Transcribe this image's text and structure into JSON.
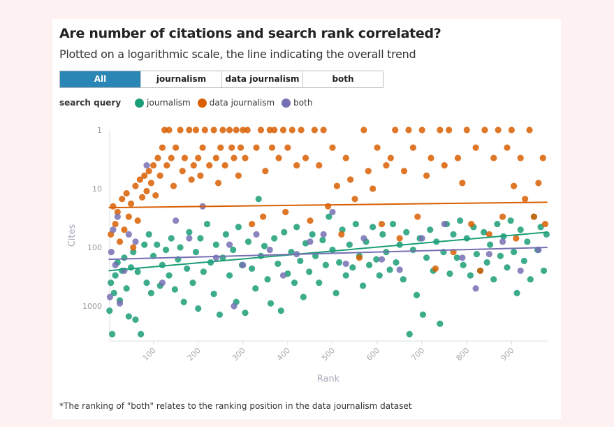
{
  "title": "Are number of citations and search rank correlated?",
  "subtitle": "Plotted on a logarithmic scale, the line indicating the overall trend",
  "filters": [
    {
      "label": "All",
      "active": true
    },
    {
      "label": "journalism",
      "active": false
    },
    {
      "label": "data journalism",
      "active": false
    },
    {
      "label": "both",
      "active": false
    }
  ],
  "legend_title": "search query",
  "footnote": "*The ranking of \"both\" relates to the ranking position in the data journalism dataset",
  "chart_data": {
    "type": "scatter",
    "xlabel": "Rank",
    "ylabel": "Cites",
    "xlim": [
      0,
      980
    ],
    "ylim": [
      1,
      4000
    ],
    "yscale": "log",
    "yreversed": true,
    "xticks": [
      100,
      200,
      300,
      400,
      500,
      600,
      700,
      800,
      900
    ],
    "yticks": [
      1,
      10,
      100,
      1000
    ],
    "series": [
      {
        "name": "journalism",
        "color": "#1b9e77",
        "trend": [
          [
            0,
            250
          ],
          [
            980,
            55
          ]
        ],
        "points": [
          [
            2,
            1200
          ],
          [
            5,
            400
          ],
          [
            8,
            3000
          ],
          [
            12,
            600
          ],
          [
            15,
            300
          ],
          [
            20,
            180
          ],
          [
            25,
            800
          ],
          [
            30,
            250
          ],
          [
            35,
            150
          ],
          [
            40,
            500
          ],
          [
            45,
            1500
          ],
          [
            50,
            220
          ],
          [
            55,
            120
          ],
          [
            60,
            1700
          ],
          [
            65,
            260
          ],
          [
            72,
            3000
          ],
          [
            80,
            90
          ],
          [
            85,
            400
          ],
          [
            90,
            60
          ],
          [
            95,
            600
          ],
          [
            100,
            140
          ],
          [
            108,
            90
          ],
          [
            115,
            450
          ],
          [
            120,
            200
          ],
          [
            128,
            110
          ],
          [
            135,
            300
          ],
          [
            140,
            70
          ],
          [
            148,
            520
          ],
          [
            155,
            160
          ],
          [
            160,
            100
          ],
          [
            168,
            850
          ],
          [
            175,
            230
          ],
          [
            180,
            55
          ],
          [
            188,
            400
          ],
          [
            195,
            120
          ],
          [
            200,
            1100
          ],
          [
            205,
            70
          ],
          [
            212,
            260
          ],
          [
            220,
            40
          ],
          [
            228,
            180
          ],
          [
            235,
            620
          ],
          [
            240,
            90
          ],
          [
            248,
            1400
          ],
          [
            255,
            150
          ],
          [
            262,
            60
          ],
          [
            270,
            300
          ],
          [
            278,
            110
          ],
          [
            285,
            850
          ],
          [
            290,
            45
          ],
          [
            298,
            200
          ],
          [
            305,
            1300
          ],
          [
            312,
            80
          ],
          [
            320,
            230
          ],
          [
            328,
            500
          ],
          [
            335,
            15
          ],
          [
            340,
            140
          ],
          [
            348,
            95
          ],
          [
            355,
            350
          ],
          [
            362,
            900
          ],
          [
            370,
            70
          ],
          [
            378,
            190
          ],
          [
            385,
            1200
          ],
          [
            392,
            55
          ],
          [
            400,
            280
          ],
          [
            408,
            120
          ],
          [
            415,
            400
          ],
          [
            420,
            45
          ],
          [
            428,
            170
          ],
          [
            435,
            700
          ],
          [
            440,
            85
          ],
          [
            448,
            260
          ],
          [
            455,
            60
          ],
          [
            462,
            140
          ],
          [
            470,
            400
          ],
          [
            478,
            75
          ],
          [
            485,
            200
          ],
          [
            492,
            30
          ],
          [
            500,
            110
          ],
          [
            508,
            600
          ],
          [
            515,
            180
          ],
          [
            522,
            50
          ],
          [
            530,
            300
          ],
          [
            538,
            90
          ],
          [
            545,
            220
          ],
          [
            552,
            40
          ],
          [
            560,
            140
          ],
          [
            568,
            450
          ],
          [
            575,
            80
          ],
          [
            582,
            200
          ],
          [
            590,
            45
          ],
          [
            598,
            160
          ],
          [
            605,
            300
          ],
          [
            612,
            60
          ],
          [
            620,
            120
          ],
          [
            628,
            240
          ],
          [
            635,
            40
          ],
          [
            642,
            180
          ],
          [
            650,
            90
          ],
          [
            658,
            350
          ],
          [
            665,
            55
          ],
          [
            672,
            3000
          ],
          [
            680,
            110
          ],
          [
            688,
            650
          ],
          [
            695,
            70
          ],
          [
            702,
            1400
          ],
          [
            710,
            150
          ],
          [
            718,
            50
          ],
          [
            725,
            250
          ],
          [
            732,
            80
          ],
          [
            740,
            2000
          ],
          [
            748,
            120
          ],
          [
            755,
            40
          ],
          [
            762,
            280
          ],
          [
            770,
            60
          ],
          [
            778,
            150
          ],
          [
            785,
            35
          ],
          [
            792,
            200
          ],
          [
            800,
            70
          ],
          [
            808,
            300
          ],
          [
            815,
            45
          ],
          [
            822,
            130
          ],
          [
            830,
            250
          ],
          [
            838,
            55
          ],
          [
            845,
            180
          ],
          [
            852,
            90
          ],
          [
            860,
            350
          ],
          [
            868,
            40
          ],
          [
            875,
            140
          ],
          [
            882,
            65
          ],
          [
            890,
            220
          ],
          [
            898,
            35
          ],
          [
            905,
            120
          ],
          [
            912,
            600
          ],
          [
            920,
            50
          ],
          [
            928,
            170
          ],
          [
            935,
            80
          ],
          [
            942,
            350
          ],
          [
            950,
            30
          ],
          [
            958,
            110
          ],
          [
            965,
            45
          ],
          [
            972,
            250
          ],
          [
            978,
            60
          ]
        ]
      },
      {
        "name": "data journalism",
        "color": "#d95f02",
        "trend": [
          [
            0,
            21
          ],
          [
            980,
            17
          ]
        ],
        "points": [
          [
            5,
            60
          ],
          [
            10,
            20
          ],
          [
            15,
            40
          ],
          [
            20,
            25
          ],
          [
            25,
            80
          ],
          [
            30,
            15
          ],
          [
            35,
            50
          ],
          [
            40,
            12
          ],
          [
            45,
            30
          ],
          [
            50,
            18
          ],
          [
            55,
            100
          ],
          [
            60,
            9
          ],
          [
            65,
            35
          ],
          [
            70,
            7
          ],
          [
            75,
            14
          ],
          [
            80,
            6
          ],
          [
            85,
            11
          ],
          [
            90,
            5
          ],
          [
            95,
            8
          ],
          [
            100,
            4
          ],
          [
            105,
            13
          ],
          [
            110,
            3
          ],
          [
            115,
            6
          ],
          [
            120,
            2
          ],
          [
            125,
            1
          ],
          [
            130,
            4
          ],
          [
            135,
            1
          ],
          [
            140,
            3
          ],
          [
            145,
            9
          ],
          [
            150,
            2
          ],
          [
            160,
            1
          ],
          [
            165,
            5
          ],
          [
            170,
            3
          ],
          [
            180,
            1
          ],
          [
            185,
            7
          ],
          [
            190,
            4
          ],
          [
            195,
            1
          ],
          [
            200,
            3
          ],
          [
            205,
            6
          ],
          [
            210,
            2
          ],
          [
            215,
            1
          ],
          [
            225,
            4
          ],
          [
            235,
            1
          ],
          [
            240,
            3
          ],
          [
            245,
            8
          ],
          [
            250,
            2
          ],
          [
            255,
            1
          ],
          [
            260,
            4
          ],
          [
            270,
            1
          ],
          [
            275,
            2
          ],
          [
            280,
            3
          ],
          [
            285,
            1
          ],
          [
            290,
            6
          ],
          [
            295,
            2
          ],
          [
            300,
            1
          ],
          [
            305,
            3
          ],
          [
            310,
            1
          ],
          [
            320,
            40
          ],
          [
            330,
            2
          ],
          [
            340,
            1
          ],
          [
            345,
            30
          ],
          [
            350,
            5
          ],
          [
            360,
            1
          ],
          [
            365,
            2
          ],
          [
            370,
            1
          ],
          [
            380,
            3
          ],
          [
            390,
            1
          ],
          [
            395,
            25
          ],
          [
            400,
            2
          ],
          [
            410,
            1
          ],
          [
            420,
            4
          ],
          [
            430,
            1
          ],
          [
            440,
            3
          ],
          [
            450,
            35
          ],
          [
            460,
            1
          ],
          [
            470,
            4
          ],
          [
            480,
            1
          ],
          [
            490,
            20
          ],
          [
            500,
            2
          ],
          [
            510,
            9
          ],
          [
            520,
            60
          ],
          [
            530,
            3
          ],
          [
            540,
            7
          ],
          [
            550,
            15
          ],
          [
            560,
            150
          ],
          [
            570,
            1
          ],
          [
            580,
            5
          ],
          [
            590,
            10
          ],
          [
            600,
            2
          ],
          [
            610,
            40
          ],
          [
            620,
            4
          ],
          [
            630,
            3
          ],
          [
            640,
            1
          ],
          [
            650,
            70
          ],
          [
            660,
            5
          ],
          [
            670,
            1
          ],
          [
            680,
            2
          ],
          [
            690,
            30
          ],
          [
            700,
            1
          ],
          [
            710,
            6
          ],
          [
            720,
            3
          ],
          [
            730,
            230
          ],
          [
            740,
            1
          ],
          [
            750,
            4
          ],
          [
            760,
            1
          ],
          [
            770,
            120
          ],
          [
            780,
            3
          ],
          [
            790,
            8
          ],
          [
            800,
            1
          ],
          [
            810,
            40
          ],
          [
            820,
            2
          ],
          [
            830,
            250
          ],
          [
            840,
            1
          ],
          [
            850,
            60
          ],
          [
            860,
            3
          ],
          [
            870,
            1
          ],
          [
            880,
            30
          ],
          [
            890,
            2
          ],
          [
            900,
            1
          ],
          [
            905,
            9
          ],
          [
            910,
            70
          ],
          [
            920,
            3
          ],
          [
            930,
            15
          ],
          [
            940,
            1
          ],
          [
            950,
            30
          ],
          [
            960,
            8
          ],
          [
            970,
            3
          ],
          [
            975,
            40
          ]
        ]
      },
      {
        "name": "both",
        "color": "#7570b3",
        "trend": [
          [
            0,
            160
          ],
          [
            980,
            100
          ]
        ],
        "points": [
          [
            3,
            700
          ],
          [
            6,
            120
          ],
          [
            10,
            50
          ],
          [
            15,
            200
          ],
          [
            20,
            30
          ],
          [
            25,
            900
          ],
          [
            35,
            250
          ],
          [
            45,
            60
          ],
          [
            60,
            80
          ],
          [
            85,
            4
          ],
          [
            120,
            400
          ],
          [
            150,
            35
          ],
          [
            180,
            70
          ],
          [
            210,
            20
          ],
          [
            240,
            150
          ],
          [
            270,
            90
          ],
          [
            280,
            1000
          ],
          [
            300,
            200
          ],
          [
            330,
            60
          ],
          [
            360,
            110
          ],
          [
            390,
            300
          ],
          [
            420,
            130
          ],
          [
            450,
            80
          ],
          [
            480,
            60
          ],
          [
            500,
            25
          ],
          [
            530,
            190
          ],
          [
            570,
            70
          ],
          [
            610,
            160
          ],
          [
            650,
            240
          ],
          [
            700,
            70
          ],
          [
            750,
            40
          ],
          [
            790,
            150
          ],
          [
            820,
            500
          ],
          [
            850,
            130
          ],
          [
            880,
            80
          ],
          [
            920,
            250
          ],
          [
            960,
            110
          ]
        ]
      }
    ]
  }
}
